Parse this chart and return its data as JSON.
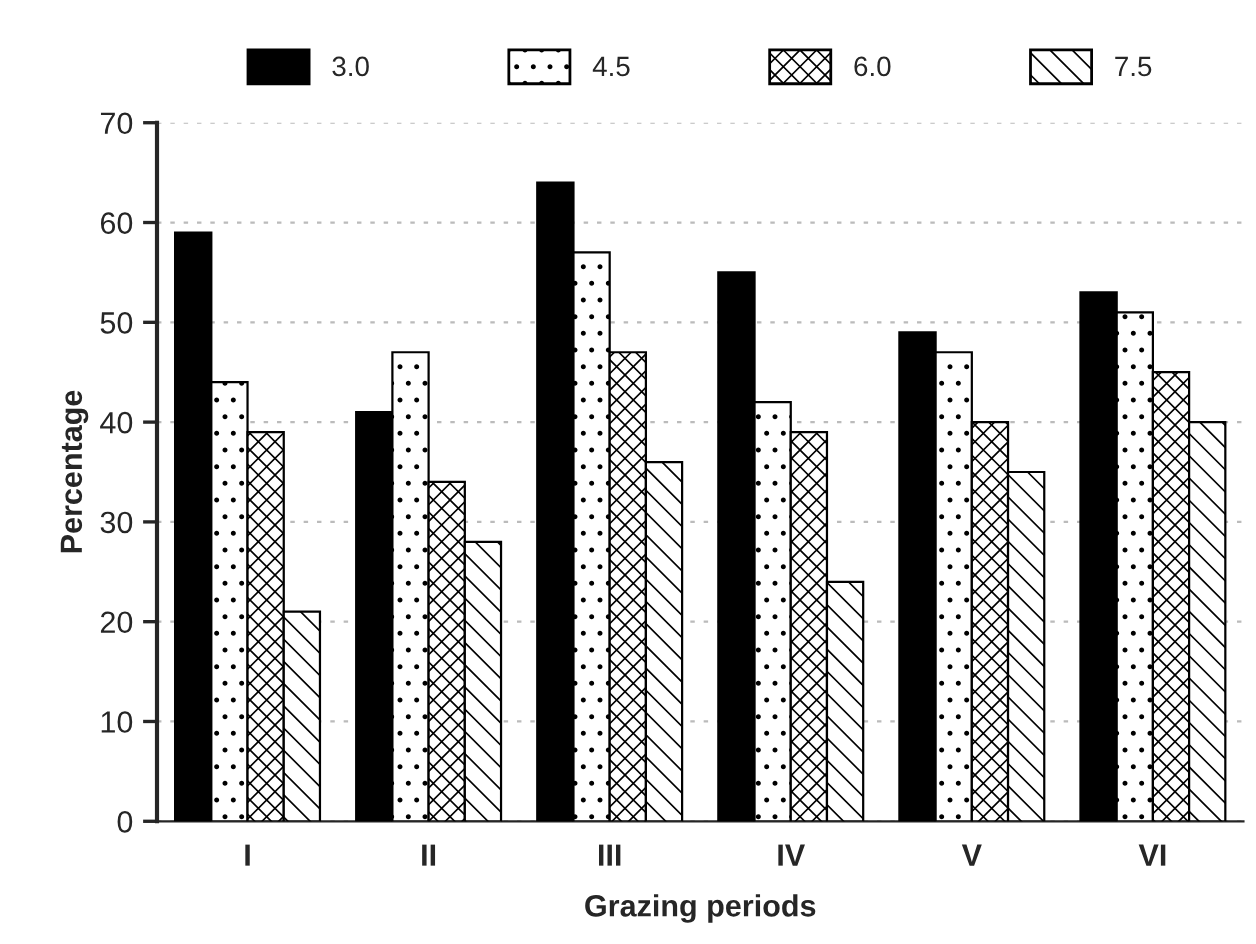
{
  "chart_data": {
    "type": "bar",
    "xlabel": "Grazing periods",
    "ylabel": "Percentage",
    "categories": [
      "I",
      "II",
      "III",
      "IV",
      "V",
      "VI"
    ],
    "series": [
      {
        "name": "3.0",
        "color": "#000000",
        "values": [
          59,
          41,
          64,
          55,
          49,
          53
        ]
      },
      {
        "name": "4.5",
        "color": "#000000",
        "values": [
          44,
          47,
          57,
          42,
          47,
          51
        ]
      },
      {
        "name": "6.0",
        "color": "#000000",
        "values": [
          39,
          34,
          47,
          39,
          40,
          45
        ]
      },
      {
        "name": "7.5",
        "color": "#000000",
        "values": [
          21,
          28,
          36,
          24,
          35,
          40
        ]
      }
    ],
    "ylim": [
      0,
      70
    ],
    "yticks": [
      0,
      10,
      20,
      30,
      40,
      50,
      60,
      70
    ],
    "grid": "y",
    "legend": "top"
  }
}
